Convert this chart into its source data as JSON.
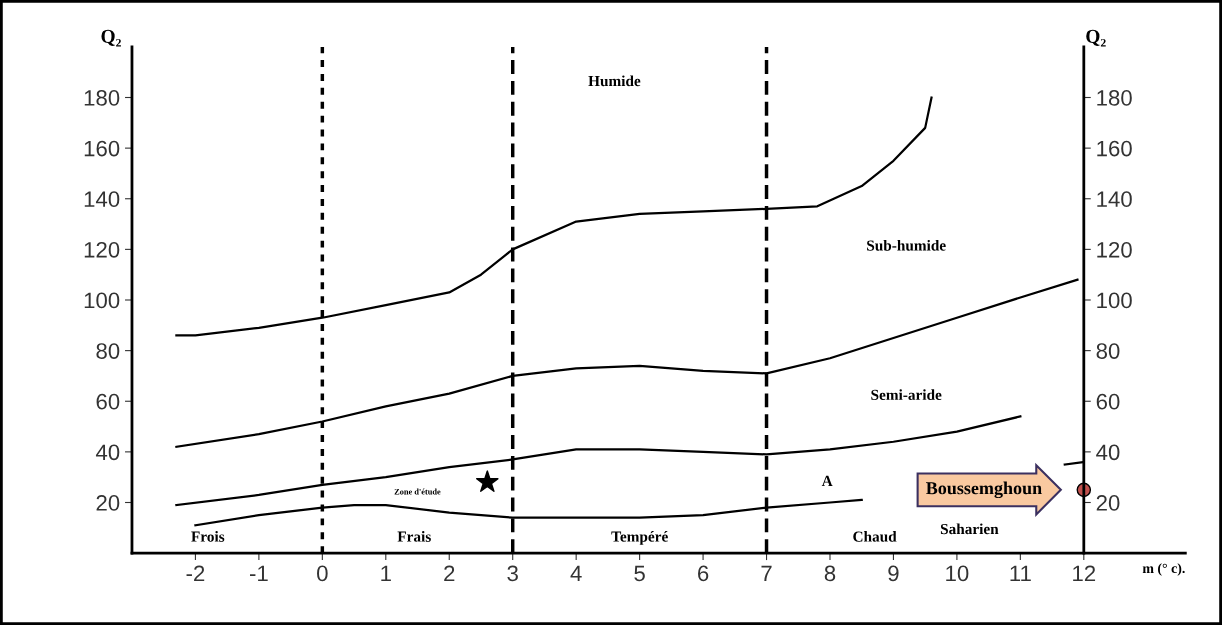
{
  "chart_data": {
    "type": "line",
    "ylabel": "Q₂",
    "y2label": "Q₂",
    "xlabel": "m (° c).",
    "xlim": [
      -3,
      13.6
    ],
    "ylim": [
      0,
      200
    ],
    "y2lim": [
      0,
      200
    ],
    "xticks": [
      -2,
      -1,
      0,
      1,
      2,
      3,
      4,
      5,
      6,
      7,
      8,
      9,
      10,
      11,
      12
    ],
    "yticks": [
      20,
      40,
      60,
      80,
      100,
      120,
      140,
      160,
      180
    ],
    "y2ticks": [
      20,
      40,
      60,
      80,
      100,
      120,
      140,
      160,
      180
    ],
    "grid": false,
    "legend": false,
    "series": [
      {
        "color": "#000000",
        "x": [
          -2.3,
          -2,
          -1,
          0,
          1,
          2,
          2.5,
          3,
          4,
          5,
          6,
          7,
          7.8,
          8.5,
          9,
          9.5,
          9.6
        ],
        "values": [
          86,
          86,
          89,
          93,
          98,
          103,
          110,
          120,
          131,
          134,
          135,
          136,
          137,
          145,
          155,
          168,
          180
        ]
      },
      {
        "color": "#000000",
        "x": [
          -2.3,
          -1,
          0,
          1,
          2,
          3,
          4,
          5,
          6,
          7,
          8,
          9,
          10,
          11,
          11.9
        ],
        "values": [
          42,
          47,
          52,
          58,
          63,
          70,
          73,
          74,
          72,
          71,
          77,
          85,
          93,
          101,
          108
        ]
      },
      {
        "color": "#000000",
        "x": [
          -2.3,
          -1,
          0,
          1,
          2,
          3,
          4,
          5,
          6,
          7,
          8,
          9,
          10,
          11
        ],
        "values": [
          19,
          23,
          27,
          30,
          34,
          37,
          41,
          41,
          40,
          39,
          41,
          44,
          48,
          54
        ]
      },
      {
        "color": "#000000",
        "x": [
          -2,
          -1,
          0,
          0.5,
          1,
          2,
          3,
          4,
          5,
          6,
          7,
          8,
          8.5,
          9,
          10,
          11.7,
          12
        ],
        "values": [
          11,
          15,
          18,
          19,
          19,
          16,
          14,
          14,
          14,
          15,
          18,
          20,
          21,
          null,
          null,
          35,
          36
        ]
      },
      {
        "type": "scatter",
        "marker": "star",
        "color": "#000000",
        "x": [
          2.6
        ],
        "values": [
          28
        ]
      },
      {
        "type": "scatter",
        "marker": "circle",
        "color": "#c0504d",
        "x": [
          12
        ],
        "values": [
          25
        ]
      }
    ],
    "ref_lines": [
      {
        "axis": "x",
        "value": 0,
        "line_style": "dotted",
        "color": "#000000"
      },
      {
        "axis": "x",
        "value": 3,
        "line_style": "dashed",
        "color": "#000000"
      },
      {
        "axis": "x",
        "value": 7,
        "line_style": "dashed",
        "color": "#000000"
      }
    ],
    "annotations": [
      "Humide",
      "Sub-humide",
      "Semi-aride",
      "A",
      "Saharien",
      "Frois",
      "Frais",
      "Tempéré",
      "Chaud",
      "Zone d'étude",
      {
        "text": "Boussemghoun",
        "x": 12,
        "y": 25
      }
    ]
  }
}
